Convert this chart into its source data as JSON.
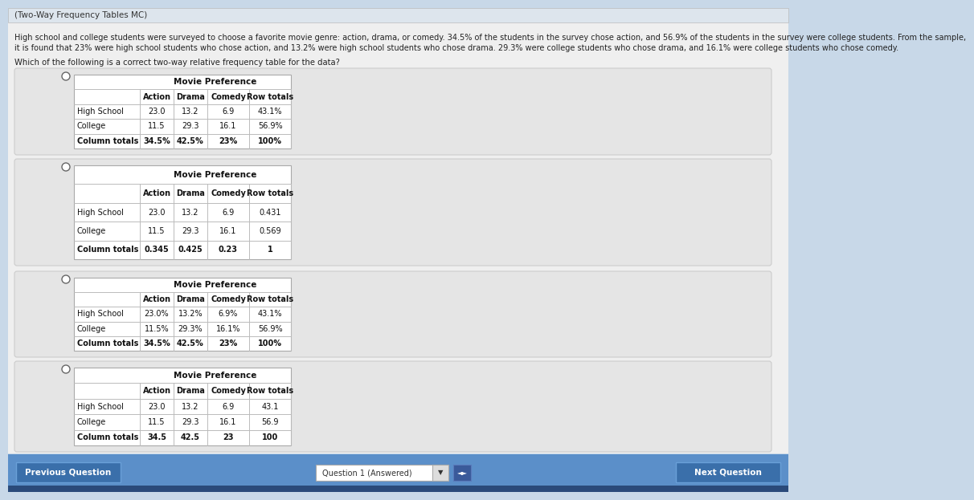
{
  "title": "(Two-Way Frequency Tables MC)",
  "desc1": "High school and college students were surveyed to choose a favorite movie genre: action, drama, or comedy. 34.5% of the students in the survey chose action, and 56.9% of the students in the survey were college students. From the sample,",
  "desc2": "it is found that 23% were high school students who chose action, and 13.2% were high school students who chose drama. 29.3% were college students who chose drama, and 16.1% were college students who chose comedy.",
  "question": "Which of the following is a correct two-way relative frequency table for the data?",
  "page_bg": "#c8d8e8",
  "content_bg": "#f0f0f0",
  "panel_bg": "#e8e8e8",
  "table_bg": "#ffffff",
  "border_color": "#bbbbbb",
  "tables": [
    {
      "header_title": "Movie Preference",
      "col_headers": [
        "",
        "Action",
        "Drama",
        "Comedy",
        "Row totals"
      ],
      "rows": [
        [
          "High School",
          "23.0",
          "13.2",
          "6.9",
          "43.1%"
        ],
        [
          "College",
          "11.5",
          "29.3",
          "16.1",
          "56.9%"
        ],
        [
          "Column totals",
          "34.5%",
          "42.5%",
          "23%",
          "100%"
        ]
      ]
    },
    {
      "header_title": "Movie Preference",
      "col_headers": [
        "",
        "Action",
        "Drama",
        "Comedy",
        "Row totals"
      ],
      "rows": [
        [
          "High School",
          "23.0",
          "13.2",
          "6.9",
          "0.431"
        ],
        [
          "College",
          "11.5",
          "29.3",
          "16.1",
          "0.569"
        ],
        [
          "Column totals",
          "0.345",
          "0.425",
          "0.23",
          "1"
        ]
      ]
    },
    {
      "header_title": "Movie Preference",
      "col_headers": [
        "",
        "Action",
        "Drama",
        "Comedy",
        "Row totals"
      ],
      "rows": [
        [
          "High School",
          "23.0%",
          "13.2%",
          "6.9%",
          "43.1%"
        ],
        [
          "College",
          "11.5%",
          "29.3%",
          "16.1%",
          "56.9%"
        ],
        [
          "Column totals",
          "34.5%",
          "42.5%",
          "23%",
          "100%"
        ]
      ]
    },
    {
      "header_title": "Movie Preference",
      "col_headers": [
        "",
        "Action",
        "Drama",
        "Comedy",
        "Row totals"
      ],
      "rows": [
        [
          "High School",
          "23.0",
          "13.2",
          "6.9",
          "43.1"
        ],
        [
          "College",
          "11.5",
          "29.3",
          "16.1",
          "56.9"
        ],
        [
          "Column totals",
          "34.5",
          "42.5",
          "23",
          "100"
        ]
      ]
    }
  ],
  "nav_bg": "#5b8fc9",
  "prev_btn_text": "Previous Question",
  "next_btn_text": "Next Question",
  "question_label": "Question 1 (Answered)",
  "btn_bg": "#3a6faa",
  "btn_border": "#6aa0d8"
}
